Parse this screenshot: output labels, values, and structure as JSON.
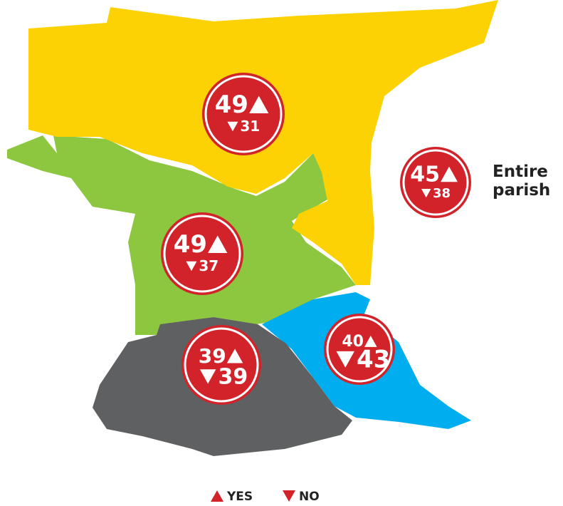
{
  "regions": [
    {
      "yes": 49,
      "no": 31
    },
    {
      "yes": 49,
      "no": 37
    },
    {
      "yes": 40,
      "no": 43
    },
    {
      "yes": 39,
      "no": 39
    }
  ],
  "parish": {
    "label": "Entire parish",
    "yes": 45,
    "no": 38
  },
  "legend": {
    "yes": "YES",
    "no": "NO"
  }
}
